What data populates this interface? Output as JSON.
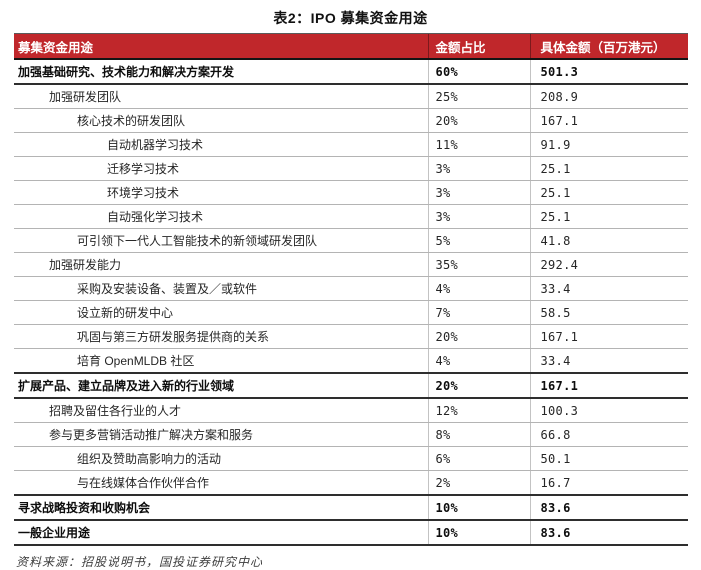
{
  "title": "表2：IPO 募集资金用途",
  "colors": {
    "header_bg": "#C0272B",
    "header_text": "#FFFFFF",
    "section_border": "#2E2E2E",
    "row_border": "#B4B4B4"
  },
  "table": {
    "headers": [
      "募集资金用途",
      "金额占比",
      "具体金额（百万港元）"
    ],
    "rows": [
      {
        "use": "加强基础研究、技术能力和解决方案开发",
        "pct": "60%",
        "amount": "501.3",
        "level": 0,
        "bold": true
      },
      {
        "use": "加强研发团队",
        "pct": "25%",
        "amount": "208.9",
        "level": 1,
        "bold": false
      },
      {
        "use": "核心技术的研发团队",
        "pct": "20%",
        "amount": "167.1",
        "level": 2,
        "bold": false
      },
      {
        "use": "自动机器学习技术",
        "pct": "11%",
        "amount": "91.9",
        "level": 3,
        "bold": false
      },
      {
        "use": "迁移学习技术",
        "pct": "3%",
        "amount": "25.1",
        "level": 3,
        "bold": false
      },
      {
        "use": "环境学习技术",
        "pct": "3%",
        "amount": "25.1",
        "level": 3,
        "bold": false
      },
      {
        "use": "自动强化学习技术",
        "pct": "3%",
        "amount": "25.1",
        "level": 3,
        "bold": false
      },
      {
        "use": "可引领下一代人工智能技术的新领域研发团队",
        "pct": "5%",
        "amount": "41.8",
        "level": 2,
        "bold": false
      },
      {
        "use": "加强研发能力",
        "pct": "35%",
        "amount": "292.4",
        "level": 1,
        "bold": false
      },
      {
        "use": "采购及安装设备、装置及／或软件",
        "pct": "4%",
        "amount": "33.4",
        "level": 2,
        "bold": false
      },
      {
        "use": "设立新的研发中心",
        "pct": "7%",
        "amount": "58.5",
        "level": 2,
        "bold": false
      },
      {
        "use": "巩固与第三方研发服务提供商的关系",
        "pct": "20%",
        "amount": "167.1",
        "level": 2,
        "bold": false
      },
      {
        "use": "培育 OpenMLDB 社区",
        "pct": "4%",
        "amount": "33.4",
        "level": 2,
        "bold": false
      },
      {
        "use": "扩展产品、建立品牌及进入新的行业领域",
        "pct": "20%",
        "amount": "167.1",
        "level": 0,
        "bold": true
      },
      {
        "use": "招聘及留住各行业的人才",
        "pct": "12%",
        "amount": "100.3",
        "level": 1,
        "bold": false
      },
      {
        "use": "参与更多营销活动推广解决方案和服务",
        "pct": "8%",
        "amount": "66.8",
        "level": 1,
        "bold": false
      },
      {
        "use": "组织及赞助高影响力的活动",
        "pct": "6%",
        "amount": "50.1",
        "level": 2,
        "bold": false
      },
      {
        "use": "与在线媒体合作伙伴合作",
        "pct": "2%",
        "amount": "16.7",
        "level": 2,
        "bold": false
      },
      {
        "use": "寻求战略投资和收购机会",
        "pct": "10%",
        "amount": "83.6",
        "level": 0,
        "bold": true
      },
      {
        "use": "一般企业用途",
        "pct": "10%",
        "amount": "83.6",
        "level": 0,
        "bold": true
      }
    ]
  },
  "source": "资料来源：招股说明书，国投证券研究中心"
}
